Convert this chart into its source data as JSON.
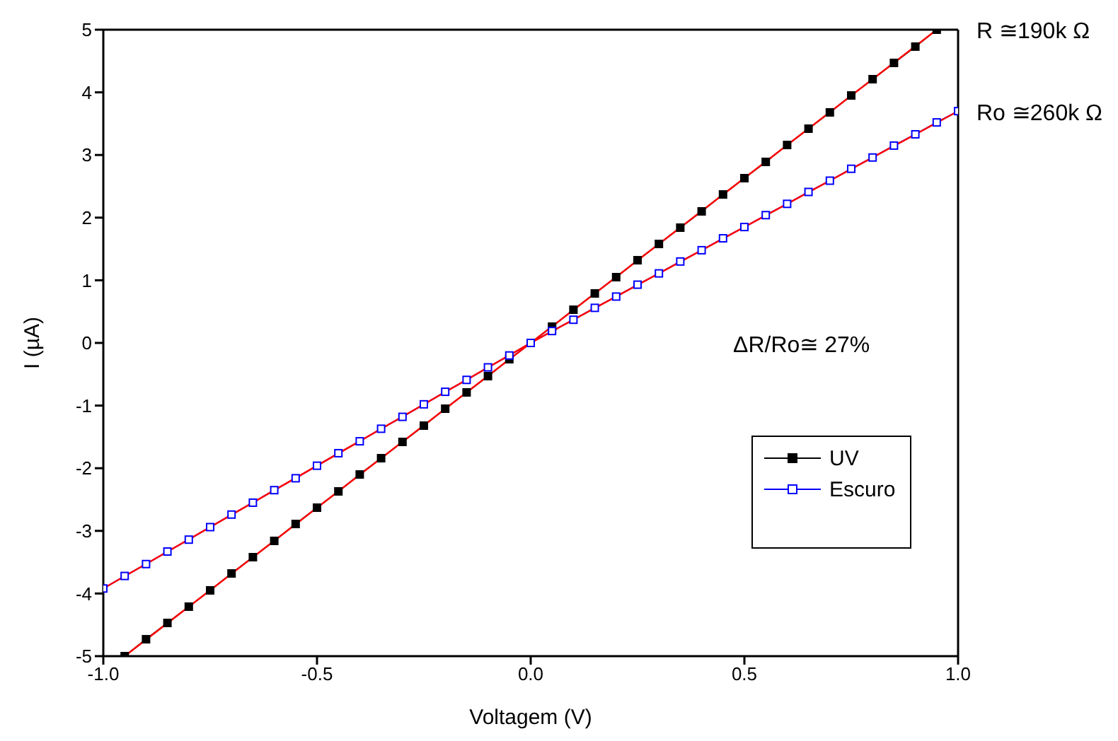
{
  "chart_data": {
    "type": "line",
    "xlabel": "Voltagem (V)",
    "ylabel": "I (µA)",
    "xlim": [
      -1.0,
      1.0
    ],
    "xticks": [
      {
        "value": -1,
        "label": "-1.0"
      },
      {
        "value": -0.5,
        "label": "-0.5"
      },
      {
        "value": 0,
        "label": "0.0"
      },
      {
        "value": 0.5,
        "label": "0.5"
      },
      {
        "value": 1,
        "label": "1.0"
      }
    ],
    "ylim": [
      -5,
      5
    ],
    "yticks": [
      -5,
      -4,
      -3,
      -2,
      -1,
      0,
      1,
      2,
      3,
      4,
      5
    ],
    "legend": "bottom right",
    "marker": "square",
    "series": [
      {
        "name": "UV",
        "color": "#000000",
        "x": [
          -0.95,
          -0.9,
          -0.85,
          -0.8,
          -0.75,
          -0.7,
          -0.65,
          -0.6,
          -0.55,
          -0.5,
          -0.45,
          -0.4,
          -0.35,
          -0.3,
          -0.25,
          -0.2,
          -0.15,
          -0.1,
          -0.05,
          0,
          0.05,
          0.1,
          0.15,
          0.2,
          0.25,
          0.3,
          0.35,
          0.4,
          0.45,
          0.5,
          0.55,
          0.6,
          0.65,
          0.7,
          0.75,
          0.8,
          0.85,
          0.9,
          0.95
        ],
        "values": [
          -5.0,
          -4.73,
          -4.47,
          -4.21,
          -3.95,
          -3.68,
          -3.42,
          -3.16,
          -2.89,
          -2.63,
          -2.37,
          -2.1,
          -1.84,
          -1.58,
          -1.32,
          -1.05,
          -0.79,
          -0.53,
          -0.26,
          0,
          0.26,
          0.53,
          0.79,
          1.05,
          1.32,
          1.58,
          1.84,
          2.1,
          2.37,
          2.63,
          2.89,
          3.16,
          3.42,
          3.68,
          3.95,
          4.21,
          4.47,
          4.73,
          5.0
        ]
      },
      {
        "name": "Escuro",
        "color": "#0000ff",
        "x": [
          -1,
          -0.95,
          -0.9,
          -0.85,
          -0.8,
          -0.75,
          -0.7,
          -0.65,
          -0.6,
          -0.55,
          -0.5,
          -0.45,
          -0.4,
          -0.35,
          -0.3,
          -0.25,
          -0.2,
          -0.15,
          -0.1,
          -0.05,
          0,
          0.05,
          0.1,
          0.15,
          0.2,
          0.25,
          0.3,
          0.35,
          0.4,
          0.45,
          0.5,
          0.55,
          0.6,
          0.65,
          0.7,
          0.75,
          0.8,
          0.85,
          0.9,
          0.95,
          1
        ],
        "values": [
          -3.92,
          -3.72,
          -3.53,
          -3.33,
          -3.14,
          -2.94,
          -2.74,
          -2.55,
          -2.35,
          -2.16,
          -1.96,
          -1.76,
          -1.57,
          -1.37,
          -1.18,
          -0.98,
          -0.78,
          -0.59,
          -0.39,
          -0.2,
          0,
          0.19,
          0.37,
          0.56,
          0.74,
          0.93,
          1.11,
          1.3,
          1.48,
          1.67,
          1.85,
          2.04,
          2.22,
          2.41,
          2.59,
          2.78,
          2.96,
          3.15,
          3.33,
          3.52,
          3.7
        ]
      },
      {
        "type": "line",
        "marker": "none",
        "color": "#ff0000",
        "x": [
          -0.95,
          0.95
        ],
        "values": [
          -5,
          5
        ]
      },
      {
        "type": "line",
        "marker": "none",
        "color": "#ff0000",
        "x": [
          -1,
          0,
          1
        ],
        "values": [
          -3.92,
          0,
          3.7
        ]
      }
    ],
    "annotations": [
      "R ≅190k Ω",
      "Ro ≅260k Ω",
      "ΔR/Ro≅ 27%"
    ]
  }
}
